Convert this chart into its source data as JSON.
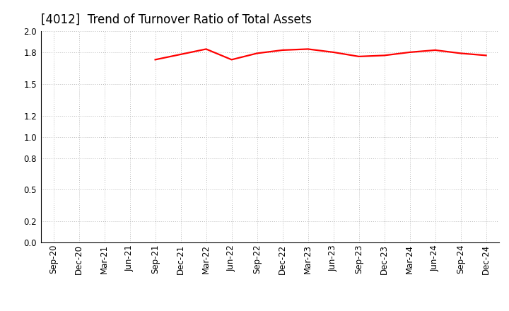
{
  "title": "[4012]  Trend of Turnover Ratio of Total Assets",
  "x_labels": [
    "Sep-20",
    "Dec-20",
    "Mar-21",
    "Jun-21",
    "Sep-21",
    "Dec-21",
    "Mar-22",
    "Jun-22",
    "Sep-22",
    "Dec-22",
    "Mar-23",
    "Jun-23",
    "Sep-23",
    "Dec-23",
    "Mar-24",
    "Jun-24",
    "Sep-24",
    "Dec-24"
  ],
  "y_values": [
    null,
    null,
    null,
    null,
    1.73,
    1.78,
    1.83,
    1.73,
    1.79,
    1.82,
    1.83,
    1.8,
    1.76,
    1.77,
    1.8,
    1.82,
    1.79,
    1.77
  ],
  "line_color": "#ff0000",
  "line_width": 1.6,
  "ylim": [
    0.0,
    2.0
  ],
  "yticks": [
    0.0,
    0.2,
    0.5,
    0.8,
    1.0,
    1.2,
    1.5,
    1.8,
    2.0
  ],
  "grid_color": "#bbbbbb",
  "background_color": "#ffffff",
  "title_fontsize": 12,
  "tick_fontsize": 8.5
}
